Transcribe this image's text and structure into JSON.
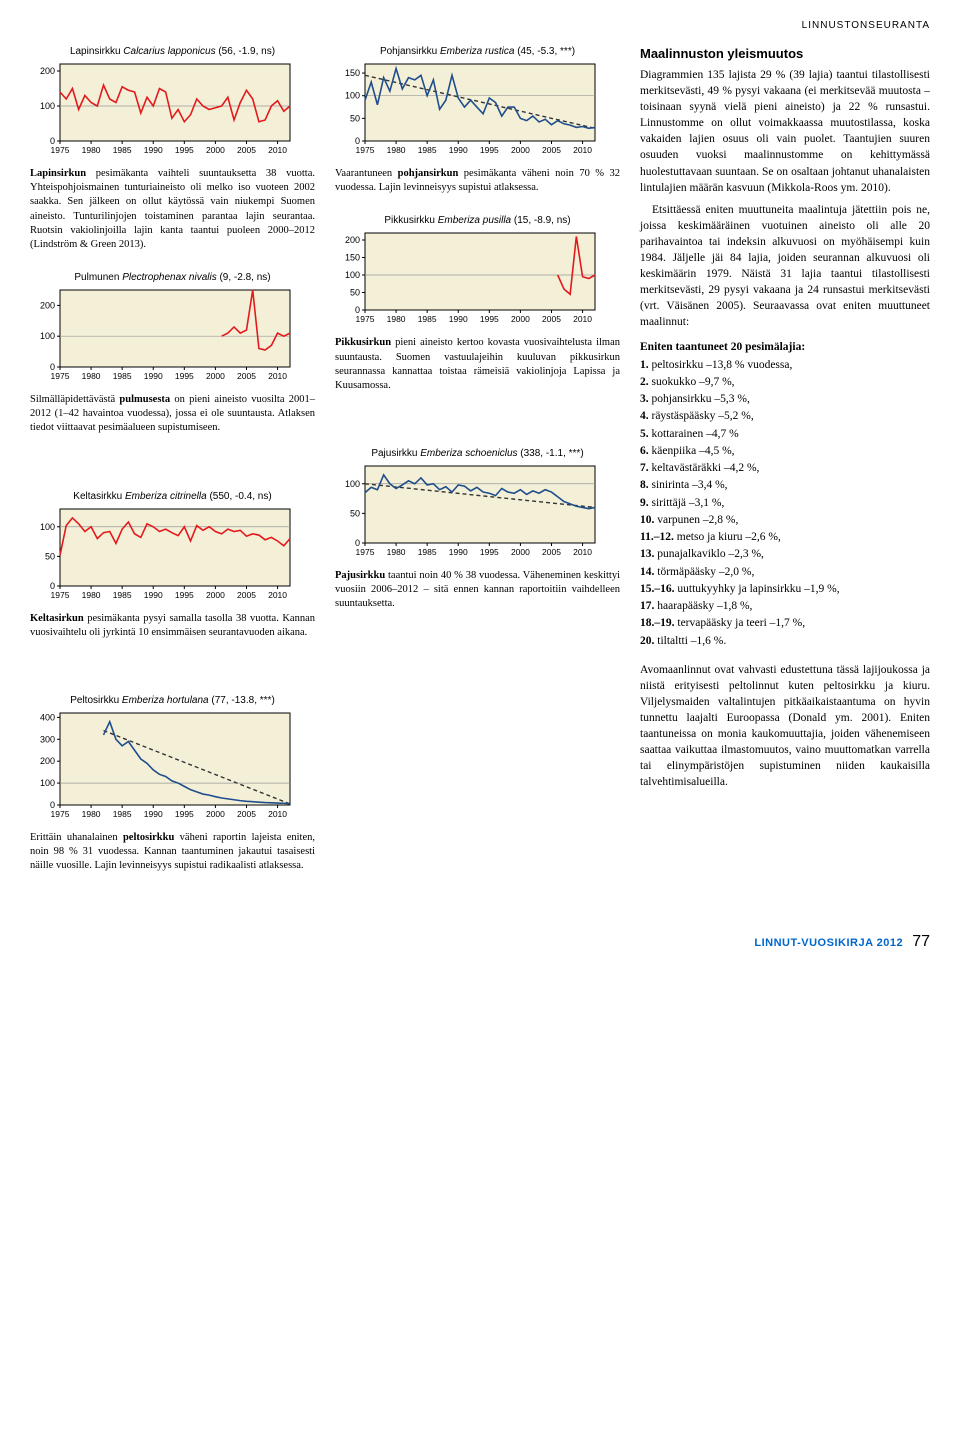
{
  "header": "LINNUSTONSEURANTA",
  "charts": [
    {
      "id": "lapinsirkku",
      "col": "left",
      "common": "Lapinsirkku",
      "sci": "Calcarius lapponicus",
      "stats": "(56, -1.9, ns)",
      "type": "line",
      "color": "#e31a1c",
      "xrange": [
        1975,
        2012
      ],
      "yrange": [
        0,
        220
      ],
      "yticks": [
        0,
        100,
        200
      ],
      "height": 100,
      "xticks": [
        1975,
        1980,
        1985,
        1990,
        1995,
        2000,
        2005,
        2010
      ],
      "data": [
        [
          1975,
          140
        ],
        [
          1976,
          120
        ],
        [
          1977,
          150
        ],
        [
          1978,
          90
        ],
        [
          1979,
          130
        ],
        [
          1980,
          110
        ],
        [
          1981,
          100
        ],
        [
          1982,
          160
        ],
        [
          1983,
          120
        ],
        [
          1984,
          110
        ],
        [
          1985,
          155
        ],
        [
          1986,
          145
        ],
        [
          1987,
          140
        ],
        [
          1988,
          80
        ],
        [
          1989,
          125
        ],
        [
          1990,
          100
        ],
        [
          1991,
          150
        ],
        [
          1992,
          140
        ],
        [
          1993,
          65
        ],
        [
          1994,
          90
        ],
        [
          1995,
          55
        ],
        [
          1996,
          75
        ],
        [
          1997,
          120
        ],
        [
          1998,
          100
        ],
        [
          1999,
          90
        ],
        [
          2000,
          95
        ],
        [
          2001,
          100
        ],
        [
          2002,
          125
        ],
        [
          2003,
          60
        ],
        [
          2004,
          110
        ],
        [
          2005,
          145
        ],
        [
          2006,
          120
        ],
        [
          2007,
          55
        ],
        [
          2008,
          60
        ],
        [
          2009,
          100
        ],
        [
          2010,
          115
        ],
        [
          2011,
          85
        ],
        [
          2012,
          100
        ]
      ],
      "caption_html": "<b>Lapinsirkun</b> pesimäkanta vaihteli suuntauksetta 38 vuotta. Yhteispohjoismainen tunturiaineisto oli melko iso vuoteen 2002 saakka. Sen jälkeen on ollut käytössä vain niukempi Suomen aineisto. Tunturilinjojen toistaminen parantaa lajin seurantaa. Ruotsin vakiolinjoilla lajin kanta taantui puoleen 2000–2012 (Lindström & Green 2013)."
    },
    {
      "id": "pohjansirkku",
      "col": "mid",
      "common": "Pohjansirkku",
      "sci": "Emberiza rustica",
      "stats": "(45, -5.3, ***)",
      "type": "line-trend",
      "color": "#1f4e8c",
      "trend_color": "#333",
      "xrange": [
        1975,
        2012
      ],
      "yrange": [
        0,
        170
      ],
      "yticks": [
        0,
        50,
        100,
        150
      ],
      "height": 100,
      "xticks": [
        1975,
        1980,
        1985,
        1990,
        1995,
        2000,
        2005,
        2010
      ],
      "data": [
        [
          1975,
          90
        ],
        [
          1976,
          130
        ],
        [
          1977,
          80
        ],
        [
          1978,
          140
        ],
        [
          1979,
          110
        ],
        [
          1980,
          160
        ],
        [
          1981,
          115
        ],
        [
          1982,
          140
        ],
        [
          1983,
          135
        ],
        [
          1984,
          145
        ],
        [
          1985,
          100
        ],
        [
          1986,
          135
        ],
        [
          1987,
          70
        ],
        [
          1988,
          90
        ],
        [
          1989,
          145
        ],
        [
          1990,
          95
        ],
        [
          1991,
          75
        ],
        [
          1992,
          90
        ],
        [
          1993,
          75
        ],
        [
          1994,
          60
        ],
        [
          1995,
          95
        ],
        [
          1996,
          85
        ],
        [
          1997,
          55
        ],
        [
          1998,
          75
        ],
        [
          1999,
          75
        ],
        [
          2000,
          50
        ],
        [
          2001,
          45
        ],
        [
          2002,
          55
        ],
        [
          2003,
          42
        ],
        [
          2004,
          48
        ],
        [
          2005,
          36
        ],
        [
          2006,
          45
        ],
        [
          2007,
          38
        ],
        [
          2008,
          35
        ],
        [
          2009,
          30
        ],
        [
          2010,
          32
        ],
        [
          2011,
          28
        ],
        [
          2012,
          30
        ]
      ],
      "trend": [
        [
          1975,
          145
        ],
        [
          2012,
          28
        ]
      ],
      "caption_html": "Vaarantuneen <b>pohjansirkun</b> pesimäkanta väheni noin 70 % 32 vuodessa. Lajin levinneisyys supistui atlaksessa."
    },
    {
      "id": "pulmunen",
      "col": "left",
      "common": "Pulmunen",
      "sci": "Plectrophenax nivalis",
      "stats": "(9, -2.8, ns)",
      "type": "line",
      "color": "#e31a1c",
      "xrange": [
        1975,
        2012
      ],
      "yrange": [
        0,
        250
      ],
      "yticks": [
        0,
        100,
        200
      ],
      "height": 100,
      "xticks": [
        1975,
        1980,
        1985,
        1990,
        1995,
        2000,
        2005,
        2010
      ],
      "data": [
        [
          2001,
          100
        ],
        [
          2002,
          110
        ],
        [
          2003,
          130
        ],
        [
          2004,
          110
        ],
        [
          2005,
          120
        ],
        [
          2006,
          280
        ],
        [
          2007,
          60
        ],
        [
          2008,
          55
        ],
        [
          2009,
          70
        ],
        [
          2010,
          110
        ],
        [
          2011,
          100
        ],
        [
          2012,
          110
        ]
      ],
      "caption_html": "Silmälläpidettävästä <b>pulmusesta</b> on pieni aineisto vuosilta 2001–2012 (1–42 havaintoa vuodessa), jossa ei ole suuntausta. Atlaksen tiedot viittaavat pesimäalueen supistumiseen."
    },
    {
      "id": "pikkusirkku",
      "col": "mid",
      "common": "Pikkusirkku",
      "sci": "Emberiza pusilla",
      "stats": "(15, -8.9, ns)",
      "type": "line",
      "color": "#e31a1c",
      "xrange": [
        1975,
        2012
      ],
      "yrange": [
        0,
        220
      ],
      "yticks": [
        0,
        50,
        100,
        150,
        200
      ],
      "height": 100,
      "xticks": [
        1975,
        1980,
        1985,
        1990,
        1995,
        2000,
        2005,
        2010
      ],
      "data": [
        [
          2006,
          100
        ],
        [
          2007,
          60
        ],
        [
          2008,
          45
        ],
        [
          2009,
          210
        ],
        [
          2010,
          95
        ],
        [
          2011,
          90
        ],
        [
          2012,
          100
        ]
      ],
      "caption_html": "<b>Pikkusirkun</b> pieni aineisto kertoo kovasta vuosivaihtelusta ilman suuntausta. Suomen vastuulajeihin kuuluvan pikkusirkun seurannassa kannattaa toistaa rämeisiä vakiolinjoja Lapissa ja Kuusamossa."
    },
    {
      "id": "keltasirkku",
      "col": "left",
      "common": "Keltasirkku",
      "sci": "Emberiza citrinella",
      "stats": "(550, -0.4, ns)",
      "type": "line",
      "color": "#e31a1c",
      "xrange": [
        1975,
        2012
      ],
      "yrange": [
        0,
        130
      ],
      "yticks": [
        0,
        50,
        100
      ],
      "height": 100,
      "xticks": [
        1975,
        1980,
        1985,
        1990,
        1995,
        2000,
        2005,
        2010
      ],
      "data": [
        [
          1975,
          52
        ],
        [
          1976,
          102
        ],
        [
          1977,
          115
        ],
        [
          1978,
          105
        ],
        [
          1979,
          92
        ],
        [
          1980,
          100
        ],
        [
          1981,
          80
        ],
        [
          1982,
          90
        ],
        [
          1983,
          92
        ],
        [
          1984,
          72
        ],
        [
          1985,
          96
        ],
        [
          1986,
          108
        ],
        [
          1987,
          88
        ],
        [
          1988,
          82
        ],
        [
          1989,
          105
        ],
        [
          1990,
          100
        ],
        [
          1991,
          92
        ],
        [
          1992,
          96
        ],
        [
          1993,
          90
        ],
        [
          1994,
          85
        ],
        [
          1995,
          100
        ],
        [
          1996,
          76
        ],
        [
          1997,
          102
        ],
        [
          1998,
          94
        ],
        [
          1999,
          100
        ],
        [
          2000,
          92
        ],
        [
          2001,
          88
        ],
        [
          2002,
          96
        ],
        [
          2003,
          92
        ],
        [
          2004,
          94
        ],
        [
          2005,
          84
        ],
        [
          2006,
          88
        ],
        [
          2007,
          86
        ],
        [
          2008,
          78
        ],
        [
          2009,
          82
        ],
        [
          2010,
          76
        ],
        [
          2011,
          68
        ],
        [
          2012,
          80
        ]
      ],
      "caption_html": "<b>Keltasirkun</b> pesimäkanta pysyi samalla tasolla 38 vuotta. Kannan vuosivaihtelu oli jyrkintä 10 ensimmäisen seurantavuoden aikana."
    },
    {
      "id": "pajusirkku",
      "col": "mid",
      "common": "Pajusirkku",
      "sci": "Emberiza schoeniclus",
      "stats": "(338, -1.1, ***)",
      "type": "line-trend",
      "color": "#1f4e8c",
      "trend_color": "#333",
      "xrange": [
        1975,
        2012
      ],
      "yrange": [
        0,
        130
      ],
      "yticks": [
        0,
        50,
        100
      ],
      "height": 100,
      "xticks": [
        1975,
        1980,
        1985,
        1990,
        1995,
        2000,
        2005,
        2010
      ],
      "data": [
        [
          1975,
          85
        ],
        [
          1976,
          94
        ],
        [
          1977,
          90
        ],
        [
          1978,
          115
        ],
        [
          1979,
          100
        ],
        [
          1980,
          92
        ],
        [
          1981,
          98
        ],
        [
          1982,
          105
        ],
        [
          1983,
          100
        ],
        [
          1984,
          110
        ],
        [
          1985,
          98
        ],
        [
          1986,
          100
        ],
        [
          1987,
          90
        ],
        [
          1988,
          95
        ],
        [
          1989,
          86
        ],
        [
          1990,
          98
        ],
        [
          1991,
          96
        ],
        [
          1992,
          88
        ],
        [
          1993,
          94
        ],
        [
          1994,
          86
        ],
        [
          1995,
          84
        ],
        [
          1996,
          80
        ],
        [
          1997,
          92
        ],
        [
          1998,
          86
        ],
        [
          1999,
          84
        ],
        [
          2000,
          90
        ],
        [
          2001,
          82
        ],
        [
          2002,
          88
        ],
        [
          2003,
          84
        ],
        [
          2004,
          90
        ],
        [
          2005,
          86
        ],
        [
          2006,
          78
        ],
        [
          2007,
          70
        ],
        [
          2008,
          66
        ],
        [
          2009,
          62
        ],
        [
          2010,
          60
        ],
        [
          2011,
          58
        ],
        [
          2012,
          60
        ]
      ],
      "trend": [
        [
          1975,
          100
        ],
        [
          2012,
          60
        ]
      ],
      "caption_html": "<b>Pajusirkku</b> taantui noin 40 % 38 vuodessa. Väheneminen keskittyi vuosiin 2006–2012 – sitä ennen kannan raportoitiin vaihdelleen suuntauksetta."
    },
    {
      "id": "peltosirkku",
      "col": "left",
      "common": "Peltosirkku",
      "sci": "Emberiza hortulana",
      "stats": "(77, -13.8, ***)",
      "type": "line-trend",
      "color": "#1f4e8c",
      "trend_color": "#333",
      "xrange": [
        1975,
        2012
      ],
      "yrange": [
        0,
        420
      ],
      "yticks": [
        0,
        100,
        200,
        300,
        400
      ],
      "height": 115,
      "xticks": [
        1975,
        1980,
        1985,
        1990,
        1995,
        2000,
        2005,
        2010
      ],
      "data": [
        [
          1982,
          320
        ],
        [
          1983,
          380
        ],
        [
          1984,
          300
        ],
        [
          1985,
          270
        ],
        [
          1986,
          290
        ],
        [
          1987,
          250
        ],
        [
          1988,
          210
        ],
        [
          1989,
          190
        ],
        [
          1990,
          160
        ],
        [
          1991,
          140
        ],
        [
          1992,
          130
        ],
        [
          1993,
          110
        ],
        [
          1994,
          100
        ],
        [
          1995,
          85
        ],
        [
          1996,
          70
        ],
        [
          1997,
          60
        ],
        [
          1998,
          50
        ],
        [
          1999,
          45
        ],
        [
          2000,
          38
        ],
        [
          2001,
          32
        ],
        [
          2002,
          28
        ],
        [
          2003,
          24
        ],
        [
          2004,
          20
        ],
        [
          2005,
          17
        ],
        [
          2006,
          15
        ],
        [
          2007,
          13
        ],
        [
          2008,
          11
        ],
        [
          2009,
          10
        ],
        [
          2010,
          9
        ],
        [
          2011,
          8
        ],
        [
          2012,
          6
        ]
      ],
      "trend": [
        [
          1982,
          340
        ],
        [
          2012,
          5
        ]
      ],
      "caption_html": "Erittäin uhanalainen <b>peltosirkku</b> väheni raportin lajeista eniten, noin 98 % 31 vuodessa. Kannan taantuminen jakautui tasaisesti näille vuosille. Lajin levinneisyys supistui radikaalisti atlaksessa."
    }
  ],
  "right": {
    "heading": "Maalinnuston yleismuutos",
    "paras": [
      "Diagrammien 135 lajista 29 % (39 lajia) taantui tilastollisesti merkitsevästi, 49 % pysyi vakaana (ei merkitsevää muutosta – toisinaan syynä vielä pieni aineisto) ja 22 % runsastui. Linnustomme on ollut voimakkaassa muutostilassa, koska vakaiden lajien osuus oli vain puolet. Taantujien suuren osuuden vuoksi maalinnustomme on kehittymässä huolestuttavaan suuntaan. Se on osaltaan johtanut uhanalaisten lintulajien määrän kasvuun (Mikkola-Roos ym. 2010).",
      "Etsittäessä eniten muuttuneita maalintuja jätettiin pois ne, joissa keskimääräinen vuotuinen aineisto oli alle 20 parihavaintoa tai indeksin alkuvuosi on myöhäisempi kuin 1984. Jäljelle jäi 84 lajia, joiden seurannan alkuvuosi oli keskimäärin 1979. Näistä 31 lajia taantui tilastollisesti merkitsevästi, 29 pysyi vakaana ja 24 runsastui merkitsevästi (vrt. Väisänen 2005). Seuraavassa ovat eniten muuttuneet maalinnut:"
    ],
    "list_title": "Eniten taantuneet 20 pesimälajia:",
    "species": [
      {
        "n": "1.",
        "t": "peltosirkku –13,8 % vuodessa,"
      },
      {
        "n": "2.",
        "t": "suokukko –9,7 %,"
      },
      {
        "n": "3.",
        "t": "pohjansirkku –5,3 %,"
      },
      {
        "n": "4.",
        "t": "räystäspääsky –5,2 %,"
      },
      {
        "n": "5.",
        "t": "kottarainen –4,7 %"
      },
      {
        "n": "6.",
        "t": "käenpiika –4,5 %,"
      },
      {
        "n": "7.",
        "t": "keltavästäräkki –4,2 %,"
      },
      {
        "n": "8.",
        "t": "sinirinta –3,4 %,"
      },
      {
        "n": "9.",
        "t": "sirittäjä –3,1 %,"
      },
      {
        "n": "10.",
        "t": "varpunen –2,8 %,"
      },
      {
        "n": "11.–12.",
        "t": "metso ja kiuru –2,6 %,"
      },
      {
        "n": "13.",
        "t": "punajalkaviklo –2,3 %,"
      },
      {
        "n": "14.",
        "t": "törmäpääsky –2,0 %,"
      },
      {
        "n": "15.–16.",
        "t": "uuttukyyhky ja lapinsirkku –1,9 %,"
      },
      {
        "n": "17.",
        "t": "haarapääsky –1,8 %,"
      },
      {
        "n": "18.–19.",
        "t": "tervapääsky ja teeri –1,7 %,"
      },
      {
        "n": "20.",
        "t": "tiltaltti –1,6 %."
      }
    ],
    "closing": "Avomaanlinnut ovat vahvasti edustettuna tässä lajijoukossa ja niistä erityisesti peltolinnut kuten peltosirkku ja kiuru. Viljelysmaiden valtalintujen pitkäaikaistaantuma on hyvin tunnettu laajalti Euroopassa (Donald ym. 2001). Eniten taantuneissa on monia kaukomuuttajia, joiden vähenemiseen saattaa vaikuttaa ilmastomuutos, vaino muuttomatkan varrella tai elinympäristöjen supistuminen niiden kaukaisilla talvehtimisalueilla."
  },
  "footer": {
    "mag": "LINNUT-VUOSIKIRJA 2012",
    "page": "77"
  },
  "style": {
    "plot_bg": "#f4f0d8",
    "axis_color": "#000",
    "grid_color": "#999"
  }
}
